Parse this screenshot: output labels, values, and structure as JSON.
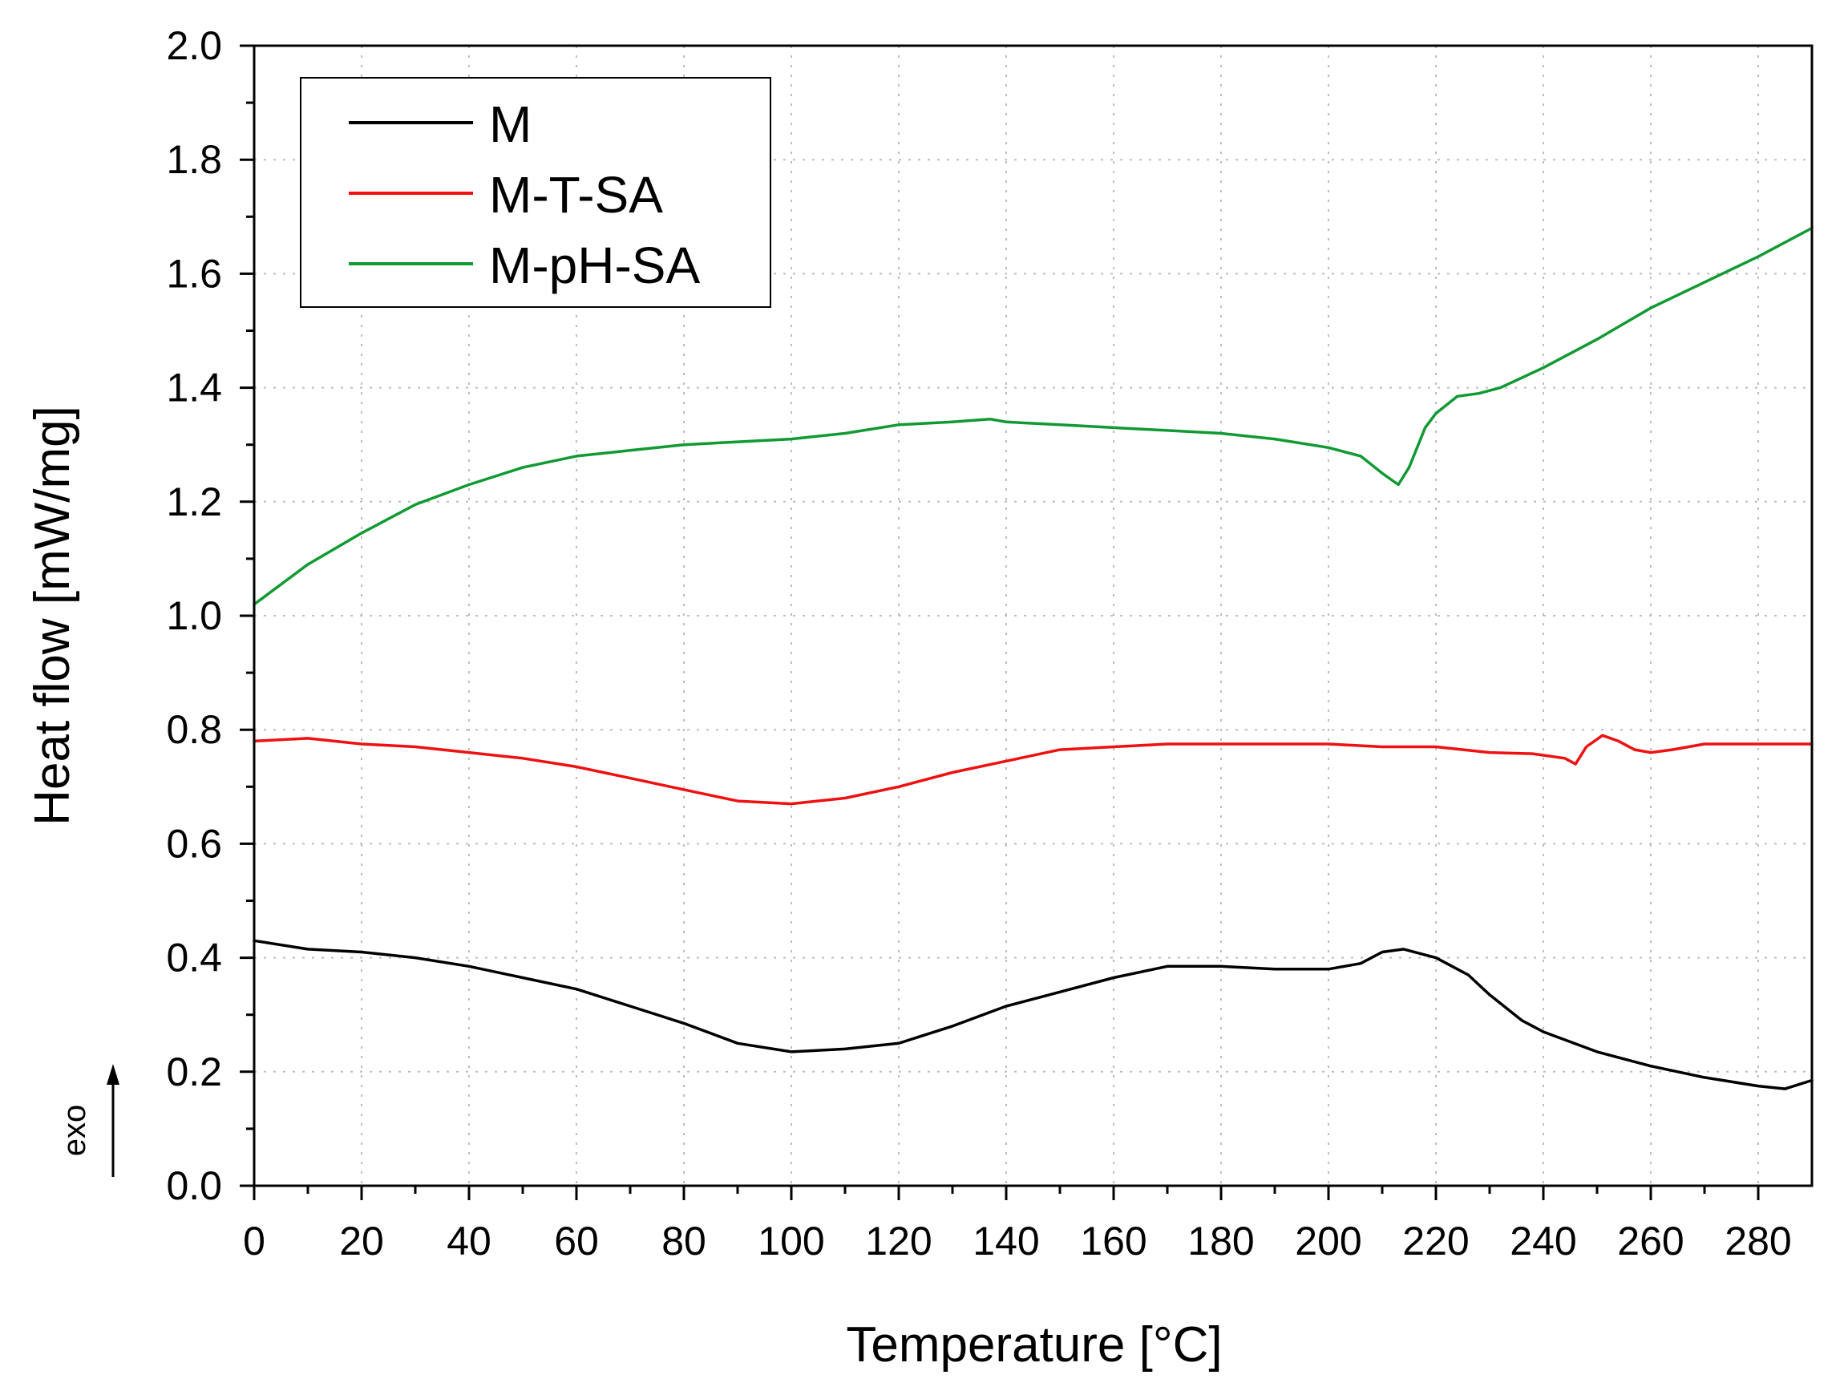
{
  "chart_data": {
    "type": "line",
    "title": "",
    "xlabel": "Temperature [°C]",
    "ylabel": "Heat flow [mW/mg]",
    "xlim": [
      0,
      290
    ],
    "ylim": [
      0,
      2.0
    ],
    "xticks": [
      0,
      20,
      40,
      60,
      80,
      100,
      120,
      140,
      160,
      180,
      200,
      220,
      240,
      260,
      280
    ],
    "xtick_labels": [
      "0",
      "20",
      "40",
      "60",
      "80",
      "100",
      "120",
      "140",
      "160",
      "180",
      "200",
      "220",
      "240",
      "260",
      "280"
    ],
    "yticks": [
      0.0,
      0.2,
      0.4,
      0.6,
      0.8,
      1.0,
      1.2,
      1.4,
      1.6,
      1.8,
      2.0
    ],
    "ytick_labels": [
      "0.0",
      "0.2",
      "0.4",
      "0.6",
      "0.8",
      "1.0",
      "1.2",
      "1.4",
      "1.6",
      "1.8",
      "2.0"
    ],
    "grid": true,
    "legend_position": "top-left",
    "annotation": "exo",
    "series": [
      {
        "name": "M",
        "color": "#000000",
        "x": [
          0,
          10,
          20,
          30,
          40,
          50,
          60,
          70,
          80,
          90,
          100,
          110,
          120,
          130,
          140,
          150,
          160,
          170,
          180,
          190,
          200,
          206,
          210,
          214,
          220,
          226,
          230,
          236,
          240,
          250,
          260,
          270,
          280,
          285,
          290
        ],
        "y": [
          0.43,
          0.415,
          0.41,
          0.4,
          0.385,
          0.365,
          0.345,
          0.315,
          0.285,
          0.25,
          0.235,
          0.24,
          0.25,
          0.28,
          0.315,
          0.34,
          0.365,
          0.385,
          0.385,
          0.38,
          0.38,
          0.39,
          0.41,
          0.415,
          0.4,
          0.37,
          0.335,
          0.29,
          0.27,
          0.235,
          0.21,
          0.19,
          0.175,
          0.17,
          0.185
        ]
      },
      {
        "name": "M-T-SA",
        "color": "#ee1111",
        "x": [
          0,
          10,
          20,
          30,
          40,
          50,
          60,
          70,
          80,
          90,
          100,
          110,
          120,
          130,
          140,
          150,
          160,
          170,
          180,
          190,
          200,
          210,
          220,
          230,
          238,
          244,
          246,
          248,
          251,
          254,
          257,
          260,
          264,
          270,
          280,
          290
        ],
        "y": [
          0.78,
          0.785,
          0.775,
          0.77,
          0.76,
          0.75,
          0.735,
          0.715,
          0.695,
          0.675,
          0.67,
          0.68,
          0.7,
          0.725,
          0.745,
          0.765,
          0.77,
          0.775,
          0.775,
          0.775,
          0.775,
          0.77,
          0.77,
          0.76,
          0.758,
          0.75,
          0.74,
          0.77,
          0.79,
          0.78,
          0.765,
          0.76,
          0.765,
          0.775,
          0.775,
          0.775
        ]
      },
      {
        "name": "M-pH-SA",
        "color": "#119933",
        "x": [
          0,
          10,
          20,
          30,
          40,
          50,
          60,
          70,
          80,
          90,
          100,
          110,
          120,
          130,
          137,
          140,
          150,
          160,
          170,
          180,
          190,
          200,
          206,
          210,
          213,
          215,
          218,
          220,
          224,
          228,
          232,
          240,
          250,
          260,
          270,
          280,
          290
        ],
        "y": [
          1.02,
          1.09,
          1.145,
          1.195,
          1.23,
          1.26,
          1.28,
          1.29,
          1.3,
          1.305,
          1.31,
          1.32,
          1.335,
          1.34,
          1.345,
          1.34,
          1.335,
          1.33,
          1.325,
          1.32,
          1.31,
          1.295,
          1.28,
          1.25,
          1.23,
          1.26,
          1.33,
          1.355,
          1.385,
          1.39,
          1.4,
          1.435,
          1.485,
          1.54,
          1.585,
          1.63,
          1.68
        ]
      }
    ]
  }
}
